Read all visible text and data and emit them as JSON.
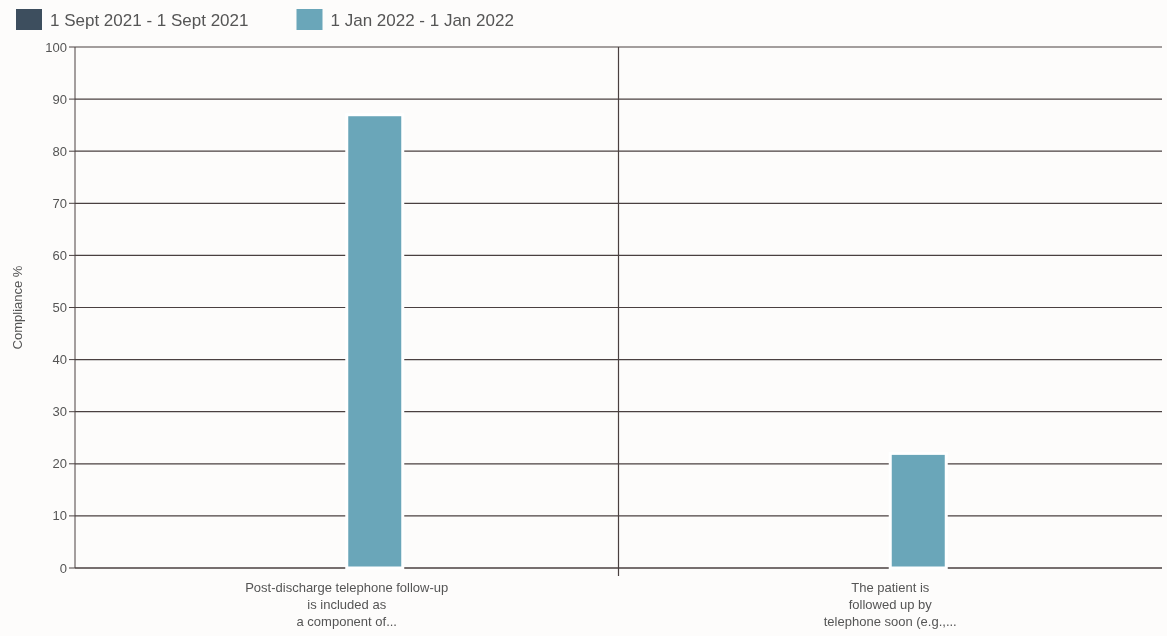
{
  "chart_data": {
    "type": "bar",
    "ylabel": "Compliance %",
    "categories": [
      "Post-discharge telephone follow-up\nis included as\na component of...",
      "The patient is\nfollowed up by\ntelephone soon (e.g.,..."
    ],
    "series": [
      {
        "name": "1 Sept 2021 - 1 Sept 2021",
        "color": "#3d4e5e",
        "values": [
          null,
          null
        ]
      },
      {
        "name": "1 Jan 2022 - 1 Jan 2022",
        "color": "#6aa6b9",
        "values": [
          87,
          22
        ]
      }
    ],
    "ylim": [
      0,
      100
    ],
    "yticks": [
      0,
      10,
      20,
      30,
      40,
      50,
      60,
      70,
      80,
      90,
      100
    ],
    "grid": true,
    "legend": "top left"
  }
}
